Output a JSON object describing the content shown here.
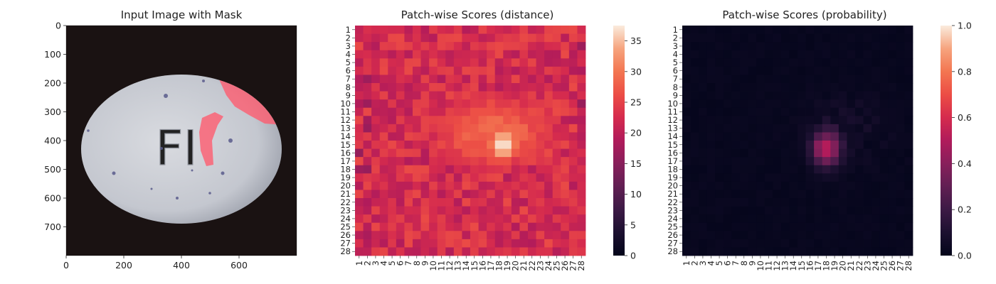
{
  "chart_data": [
    {
      "type": "image",
      "title": "Input Image with Mask",
      "xlabel": "",
      "ylabel": "",
      "xlim": [
        0,
        800
      ],
      "ylim": [
        800,
        0
      ],
      "xticks": [
        "0",
        "200",
        "400",
        "600"
      ],
      "yticks": [
        "0",
        "100",
        "200",
        "300",
        "400",
        "500",
        "600",
        "700"
      ],
      "image": {
        "background": "#1a1212",
        "object": "white oval pill embossed with letters",
        "embossed_text": "FI",
        "pill_color": "#c9ccd2",
        "mask_color": "#ff5a6e"
      }
    },
    {
      "type": "heatmap",
      "title": "Patch-wise Scores (distance)",
      "xlabel": "",
      "ylabel": "",
      "rows": 28,
      "cols": 28,
      "row_labels": [
        "1",
        "2",
        "3",
        "4",
        "5",
        "6",
        "7",
        "8",
        "9",
        "10",
        "11",
        "12",
        "13",
        "14",
        "15",
        "16",
        "17",
        "18",
        "19",
        "20",
        "21",
        "22",
        "23",
        "24",
        "25",
        "26",
        "27",
        "28"
      ],
      "col_labels": [
        "1",
        "2",
        "3",
        "4",
        "5",
        "6",
        "7",
        "8",
        "9",
        "10",
        "11",
        "12",
        "13",
        "14",
        "15",
        "16",
        "17",
        "18",
        "19",
        "20",
        "21",
        "22",
        "23",
        "24",
        "25",
        "26",
        "27",
        "28"
      ],
      "colorbar": {
        "min": 0,
        "max": 37.5,
        "ticks": [
          "0",
          "5",
          "10",
          "15",
          "20",
          "25",
          "30",
          "35"
        ]
      },
      "colormap": "rocket",
      "summary": {
        "background_range": [
          19,
          26
        ],
        "hotspot_center_row_col": [
          15,
          18.5
        ],
        "hotspot_peak": 37.5,
        "plateau_value": 29
      }
    },
    {
      "type": "heatmap",
      "title": "Patch-wise Scores (probability)",
      "xlabel": "",
      "ylabel": "",
      "rows": 28,
      "cols": 28,
      "row_labels": [
        "1",
        "2",
        "3",
        "4",
        "5",
        "6",
        "7",
        "8",
        "9",
        "10",
        "11",
        "12",
        "13",
        "14",
        "15",
        "16",
        "17",
        "18",
        "19",
        "20",
        "21",
        "22",
        "23",
        "24",
        "25",
        "26",
        "27",
        "28"
      ],
      "col_labels": [
        "1",
        "2",
        "3",
        "4",
        "5",
        "6",
        "7",
        "8",
        "9",
        "10",
        "11",
        "12",
        "13",
        "14",
        "15",
        "16",
        "17",
        "18",
        "19",
        "20",
        "21",
        "22",
        "23",
        "24",
        "25",
        "26",
        "27",
        "28"
      ],
      "colorbar": {
        "min": 0,
        "max": 1,
        "ticks": [
          "0.0",
          "0.2",
          "0.4",
          "0.6",
          "0.8",
          "1.0"
        ]
      },
      "colormap": "rocket",
      "summary": {
        "background_value": 0.01,
        "hotspot_center_row_col": [
          15.5,
          18
        ],
        "hotspot_peak": 0.5
      }
    }
  ]
}
